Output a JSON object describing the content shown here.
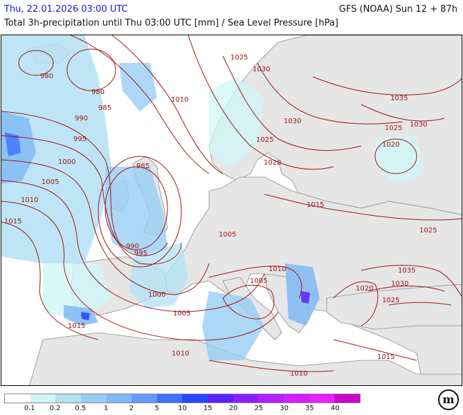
{
  "header": {
    "date": "Thu, 22.01.2026 03:00 UTC",
    "model": "GFS (NOAA) Sun 12 + 87h",
    "subtitle": "Total 3h-precipitation until Thu 03:00 UTC [mm] / Sea Level Pressure [hPa]"
  },
  "colors": {
    "isobar": "#a01414",
    "land": "#e6e6e6",
    "sea": "#ffffff",
    "border": "#8c8c8c"
  },
  "legend": {
    "colors": [
      "#ffffff",
      "#cff7f7",
      "#b3e1f5",
      "#99cdf5",
      "#80b8f5",
      "#6699ff",
      "#3f72ff",
      "#2947ff",
      "#5e1fff",
      "#8c1fff",
      "#b31fff",
      "#d11fff",
      "#eb1fff",
      "#cc00cc"
    ],
    "labels": [
      "0.1",
      "0.2",
      "0.5",
      "1",
      "2",
      "5",
      "10",
      "15",
      "20",
      "25",
      "30",
      "35",
      "40"
    ]
  },
  "isobar_labels": [
    "980",
    "980",
    "985",
    "985",
    "990",
    "990",
    "995",
    "995",
    "1000",
    "1000",
    "1005",
    "1005",
    "1005",
    "1005",
    "1010",
    "1010",
    "1010",
    "1010",
    "1010",
    "1015",
    "1015",
    "1015",
    "1015",
    "1020",
    "1020",
    "1020",
    "1025",
    "1025",
    "1025",
    "1025",
    "1025",
    "1030",
    "1030",
    "1030",
    "1030",
    "1035",
    "1035"
  ],
  "logo": "m"
}
